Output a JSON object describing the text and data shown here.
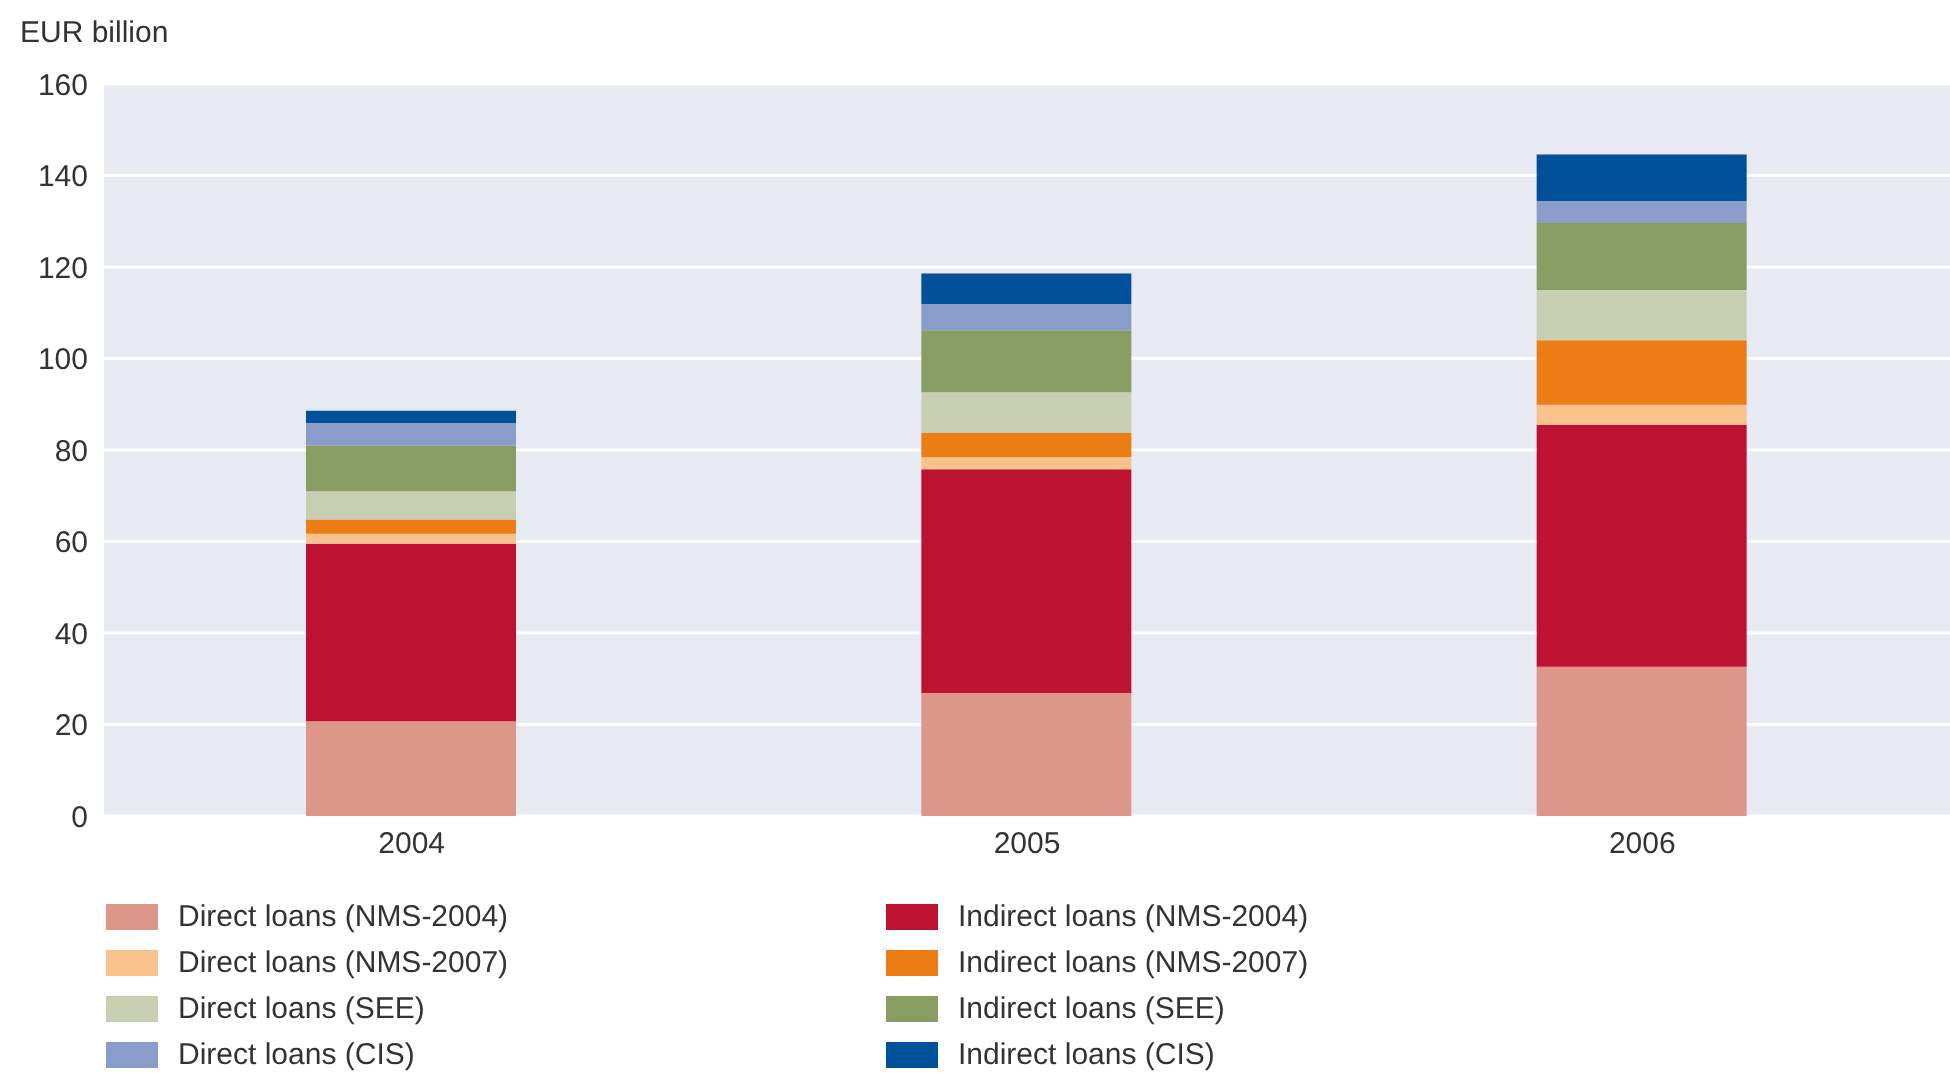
{
  "chart_data": {
    "type": "bar",
    "stacked": true,
    "ylabel": "EUR billion",
    "categories": [
      "2004",
      "2005",
      "2006"
    ],
    "ylim": [
      0,
      160
    ],
    "yticks": [
      0,
      20,
      40,
      60,
      80,
      100,
      120,
      140,
      160
    ],
    "grid": "y",
    "legend": "bottom",
    "series": [
      {
        "name": "Direct loans (NMS-2004)",
        "color": "#dc978a",
        "values": [
          20.7,
          26.9,
          32.6
        ]
      },
      {
        "name": "Indirect loans (NMS-2004)",
        "color": "#be1233",
        "values": [
          38.8,
          48.9,
          52.9
        ]
      },
      {
        "name": "Direct loans (NMS-2007)",
        "color": "#f8c28c",
        "values": [
          2.2,
          2.6,
          4.4
        ]
      },
      {
        "name": "Indirect loans (NMS-2007)",
        "color": "#ec7d14",
        "values": [
          3.1,
          5.3,
          14.1
        ]
      },
      {
        "name": "Direct loans (SEE)",
        "color": "#c8ceb1",
        "values": [
          6.2,
          8.9,
          11.0
        ]
      },
      {
        "name": "Indirect loans (SEE)",
        "color": "#889d62",
        "values": [
          10.0,
          13.6,
          14.6
        ]
      },
      {
        "name": "Direct loans (CIS)",
        "color": "#8a9cc9",
        "values": [
          4.9,
          5.7,
          4.8
        ]
      },
      {
        "name": "Indirect loans (CIS)",
        "color": "#00509a",
        "values": [
          2.7,
          6.7,
          10.2
        ]
      }
    ]
  }
}
